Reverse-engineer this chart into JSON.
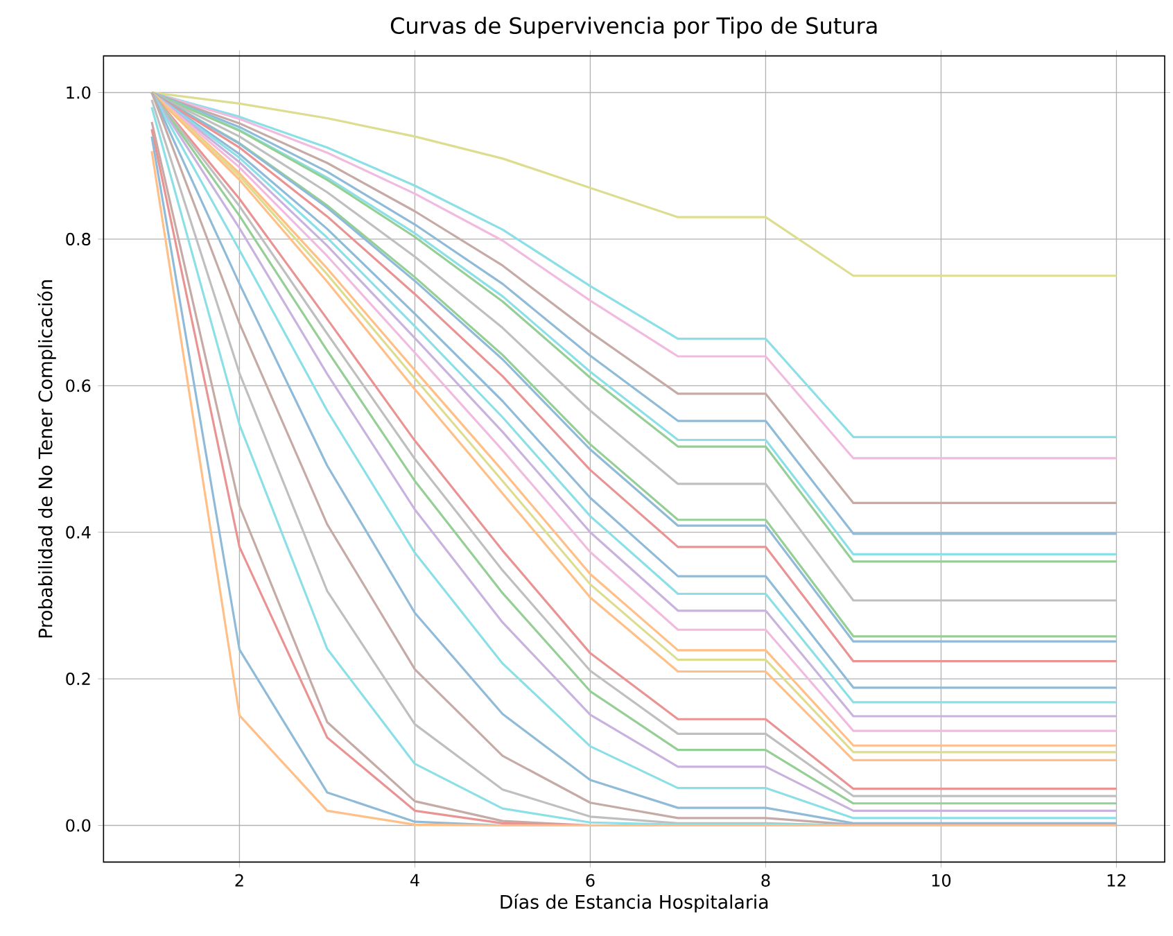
{
  "chart_data": {
    "type": "line",
    "title": "Curvas de Supervivencia por Tipo de Sutura",
    "xlabel": "Días de Estancia Hospitalaria",
    "ylabel": "Probabilidad de No Tener Complicación",
    "x": [
      1,
      2,
      3,
      4,
      5,
      6,
      7,
      8,
      9,
      10,
      11,
      12
    ],
    "xlim": [
      0.45,
      12.55
    ],
    "ylim": [
      -0.05,
      1.05
    ],
    "xticks": [
      2,
      4,
      6,
      8,
      10,
      12
    ],
    "yticks": [
      {
        "value": 0,
        "label": "0.0"
      },
      {
        "value": 0.2,
        "label": "0.2"
      },
      {
        "value": 0.4,
        "label": "0.4"
      },
      {
        "value": 0.6,
        "label": "0.6"
      },
      {
        "value": 0.8,
        "label": "0.8"
      },
      {
        "value": 1,
        "label": "1.0"
      }
    ],
    "grid": true,
    "series": [
      {
        "color": "#dddd90",
        "values": [
          1,
          0.985,
          0.965,
          0.94,
          0.91,
          0.87,
          0.83,
          0.83,
          0.75,
          0.75,
          0.75,
          0.75
        ]
      },
      {
        "color": "#8bdfe7",
        "values": [
          1,
          0.967,
          0.925,
          0.873,
          0.813,
          0.736,
          0.664,
          0.664,
          0.53,
          0.53,
          0.53,
          0.53
        ]
      },
      {
        "color": "#f1bbe0",
        "values": [
          1,
          0.964,
          0.918,
          0.862,
          0.798,
          0.716,
          0.64,
          0.64,
          0.501,
          0.501,
          0.501,
          0.501
        ]
      },
      {
        "color": "#c5aaa5",
        "values": [
          1,
          0.958,
          0.904,
          0.838,
          0.764,
          0.673,
          0.589,
          0.589,
          0.44,
          0.44,
          0.44,
          0.44
        ]
      },
      {
        "color": "#8fbbd9",
        "values": [
          1,
          0.953,
          0.892,
          0.82,
          0.739,
          0.641,
          0.552,
          0.552,
          0.398,
          0.398,
          0.398,
          0.398
        ]
      },
      {
        "color": "#8bdfe7",
        "values": [
          1,
          0.949,
          0.884,
          0.808,
          0.722,
          0.619,
          0.526,
          0.526,
          0.37,
          0.37,
          0.37,
          0.37
        ]
      },
      {
        "color": "#95cf95",
        "values": [
          1,
          0.948,
          0.881,
          0.803,
          0.715,
          0.611,
          0.517,
          0.517,
          0.36,
          0.36,
          0.36,
          0.36
        ]
      },
      {
        "color": "#bfbfbf",
        "values": [
          1,
          0.94,
          0.864,
          0.776,
          0.679,
          0.566,
          0.466,
          0.466,
          0.307,
          0.307,
          0.307,
          0.307
        ]
      },
      {
        "color": "#95cf95",
        "values": [
          1,
          0.931,
          0.846,
          0.748,
          0.642,
          0.52,
          0.417,
          0.417,
          0.258,
          0.258,
          0.258,
          0.258
        ]
      },
      {
        "color": "#8fbbd9",
        "values": [
          1,
          0.93,
          0.843,
          0.743,
          0.636,
          0.513,
          0.409,
          0.409,
          0.251,
          0.251,
          0.251,
          0.251
        ]
      },
      {
        "color": "#ea9393",
        "values": [
          1,
          0.925,
          0.831,
          0.725,
          0.613,
          0.485,
          0.38,
          0.38,
          0.224,
          0.224,
          0.224,
          0.224
        ]
      },
      {
        "color": "#8fbbd9",
        "values": [
          1,
          0.916,
          0.814,
          0.698,
          0.579,
          0.447,
          0.34,
          0.34,
          0.188,
          0.188,
          0.188,
          0.188
        ]
      },
      {
        "color": "#8bdfe7",
        "values": [
          1,
          0.911,
          0.802,
          0.681,
          0.557,
          0.422,
          0.316,
          0.316,
          0.168,
          0.168,
          0.168,
          0.168
        ]
      },
      {
        "color": "#c9b3de",
        "values": [
          1,
          0.905,
          0.791,
          0.665,
          0.537,
          0.4,
          0.293,
          0.293,
          0.149,
          0.149,
          0.149,
          0.149
        ]
      },
      {
        "color": "#f1bbe0",
        "values": [
          1,
          0.898,
          0.777,
          0.645,
          0.512,
          0.373,
          0.267,
          0.267,
          0.129,
          0.129,
          0.129,
          0.129
        ]
      },
      {
        "color": "#ffbf86",
        "values": [
          1,
          0.89,
          0.76,
          0.621,
          0.484,
          0.343,
          0.239,
          0.239,
          0.109,
          0.109,
          0.109,
          0.109
        ]
      },
      {
        "color": "#dddd90",
        "values": [
          1,
          0.886,
          0.752,
          0.61,
          0.47,
          0.329,
          0.226,
          0.226,
          0.1,
          0.1,
          0.1,
          0.1
        ]
      },
      {
        "color": "#ffbf86",
        "values": [
          1,
          0.881,
          0.742,
          0.595,
          0.453,
          0.311,
          0.21,
          0.21,
          0.089,
          0.089,
          0.089,
          0.089
        ]
      },
      {
        "color": "#ea9393",
        "values": [
          1,
          0.855,
          0.691,
          0.525,
          0.375,
          0.235,
          0.145,
          0.145,
          0.05,
          0.05,
          0.05,
          0.05
        ]
      },
      {
        "color": "#bfbfbf",
        "values": [
          1,
          0.845,
          0.671,
          0.5,
          0.348,
          0.211,
          0.125,
          0.125,
          0.04,
          0.04,
          0.04,
          0.04
        ]
      },
      {
        "color": "#95cf95",
        "values": [
          1,
          0.832,
          0.648,
          0.47,
          0.317,
          0.183,
          0.103,
          0.103,
          0.03,
          0.03,
          0.03,
          0.03
        ]
      },
      {
        "color": "#c9b3de",
        "values": [
          1,
          0.815,
          0.616,
          0.431,
          0.277,
          0.151,
          0.08,
          0.08,
          0.02,
          0.02,
          0.02,
          0.02
        ]
      },
      {
        "color": "#8bdfe7",
        "values": [
          1,
          0.785,
          0.566,
          0.372,
          0.221,
          0.108,
          0.051,
          0.051,
          0.01,
          0.01,
          0.01,
          0.01
        ]
      },
      {
        "color": "#8fbbd9",
        "values": [
          1,
          0.739,
          0.491,
          0.29,
          0.152,
          0.062,
          0.024,
          0.024,
          0.003,
          0.003,
          0.003,
          0.003
        ]
      },
      {
        "color": "#c5aaa5",
        "values": [
          1,
          0.685,
          0.411,
          0.213,
          0.095,
          0.031,
          0.01,
          0.01,
          0.001,
          0.001,
          0.001,
          0.001
        ]
      },
      {
        "color": "#bfbfbf",
        "values": [
          0.99,
          0.617,
          0.32,
          0.138,
          0.049,
          0.012,
          0.003,
          0.003,
          0,
          0,
          0,
          0
        ]
      },
      {
        "color": "#8bdfe7",
        "values": [
          0.98,
          0.547,
          0.241,
          0.084,
          0.023,
          0.004,
          0.001,
          0.001,
          0,
          0,
          0,
          0
        ]
      },
      {
        "color": "#c5aaa5",
        "values": [
          0.96,
          0.436,
          0.141,
          0.033,
          0.006,
          0,
          0,
          0,
          0,
          0,
          0,
          0
        ]
      },
      {
        "color": "#ea9393",
        "values": [
          0.95,
          0.38,
          0.12,
          0.02,
          0.003,
          0,
          0,
          0,
          0,
          0,
          0,
          0
        ]
      },
      {
        "color": "#8fbbd9",
        "values": [
          0.94,
          0.24,
          0.045,
          0.005,
          0,
          0,
          0,
          0,
          0,
          0,
          0,
          0
        ]
      },
      {
        "color": "#ffbf86",
        "values": [
          0.92,
          0.15,
          0.02,
          0.001,
          0,
          0,
          0,
          0,
          0,
          0,
          0,
          0
        ]
      }
    ]
  }
}
